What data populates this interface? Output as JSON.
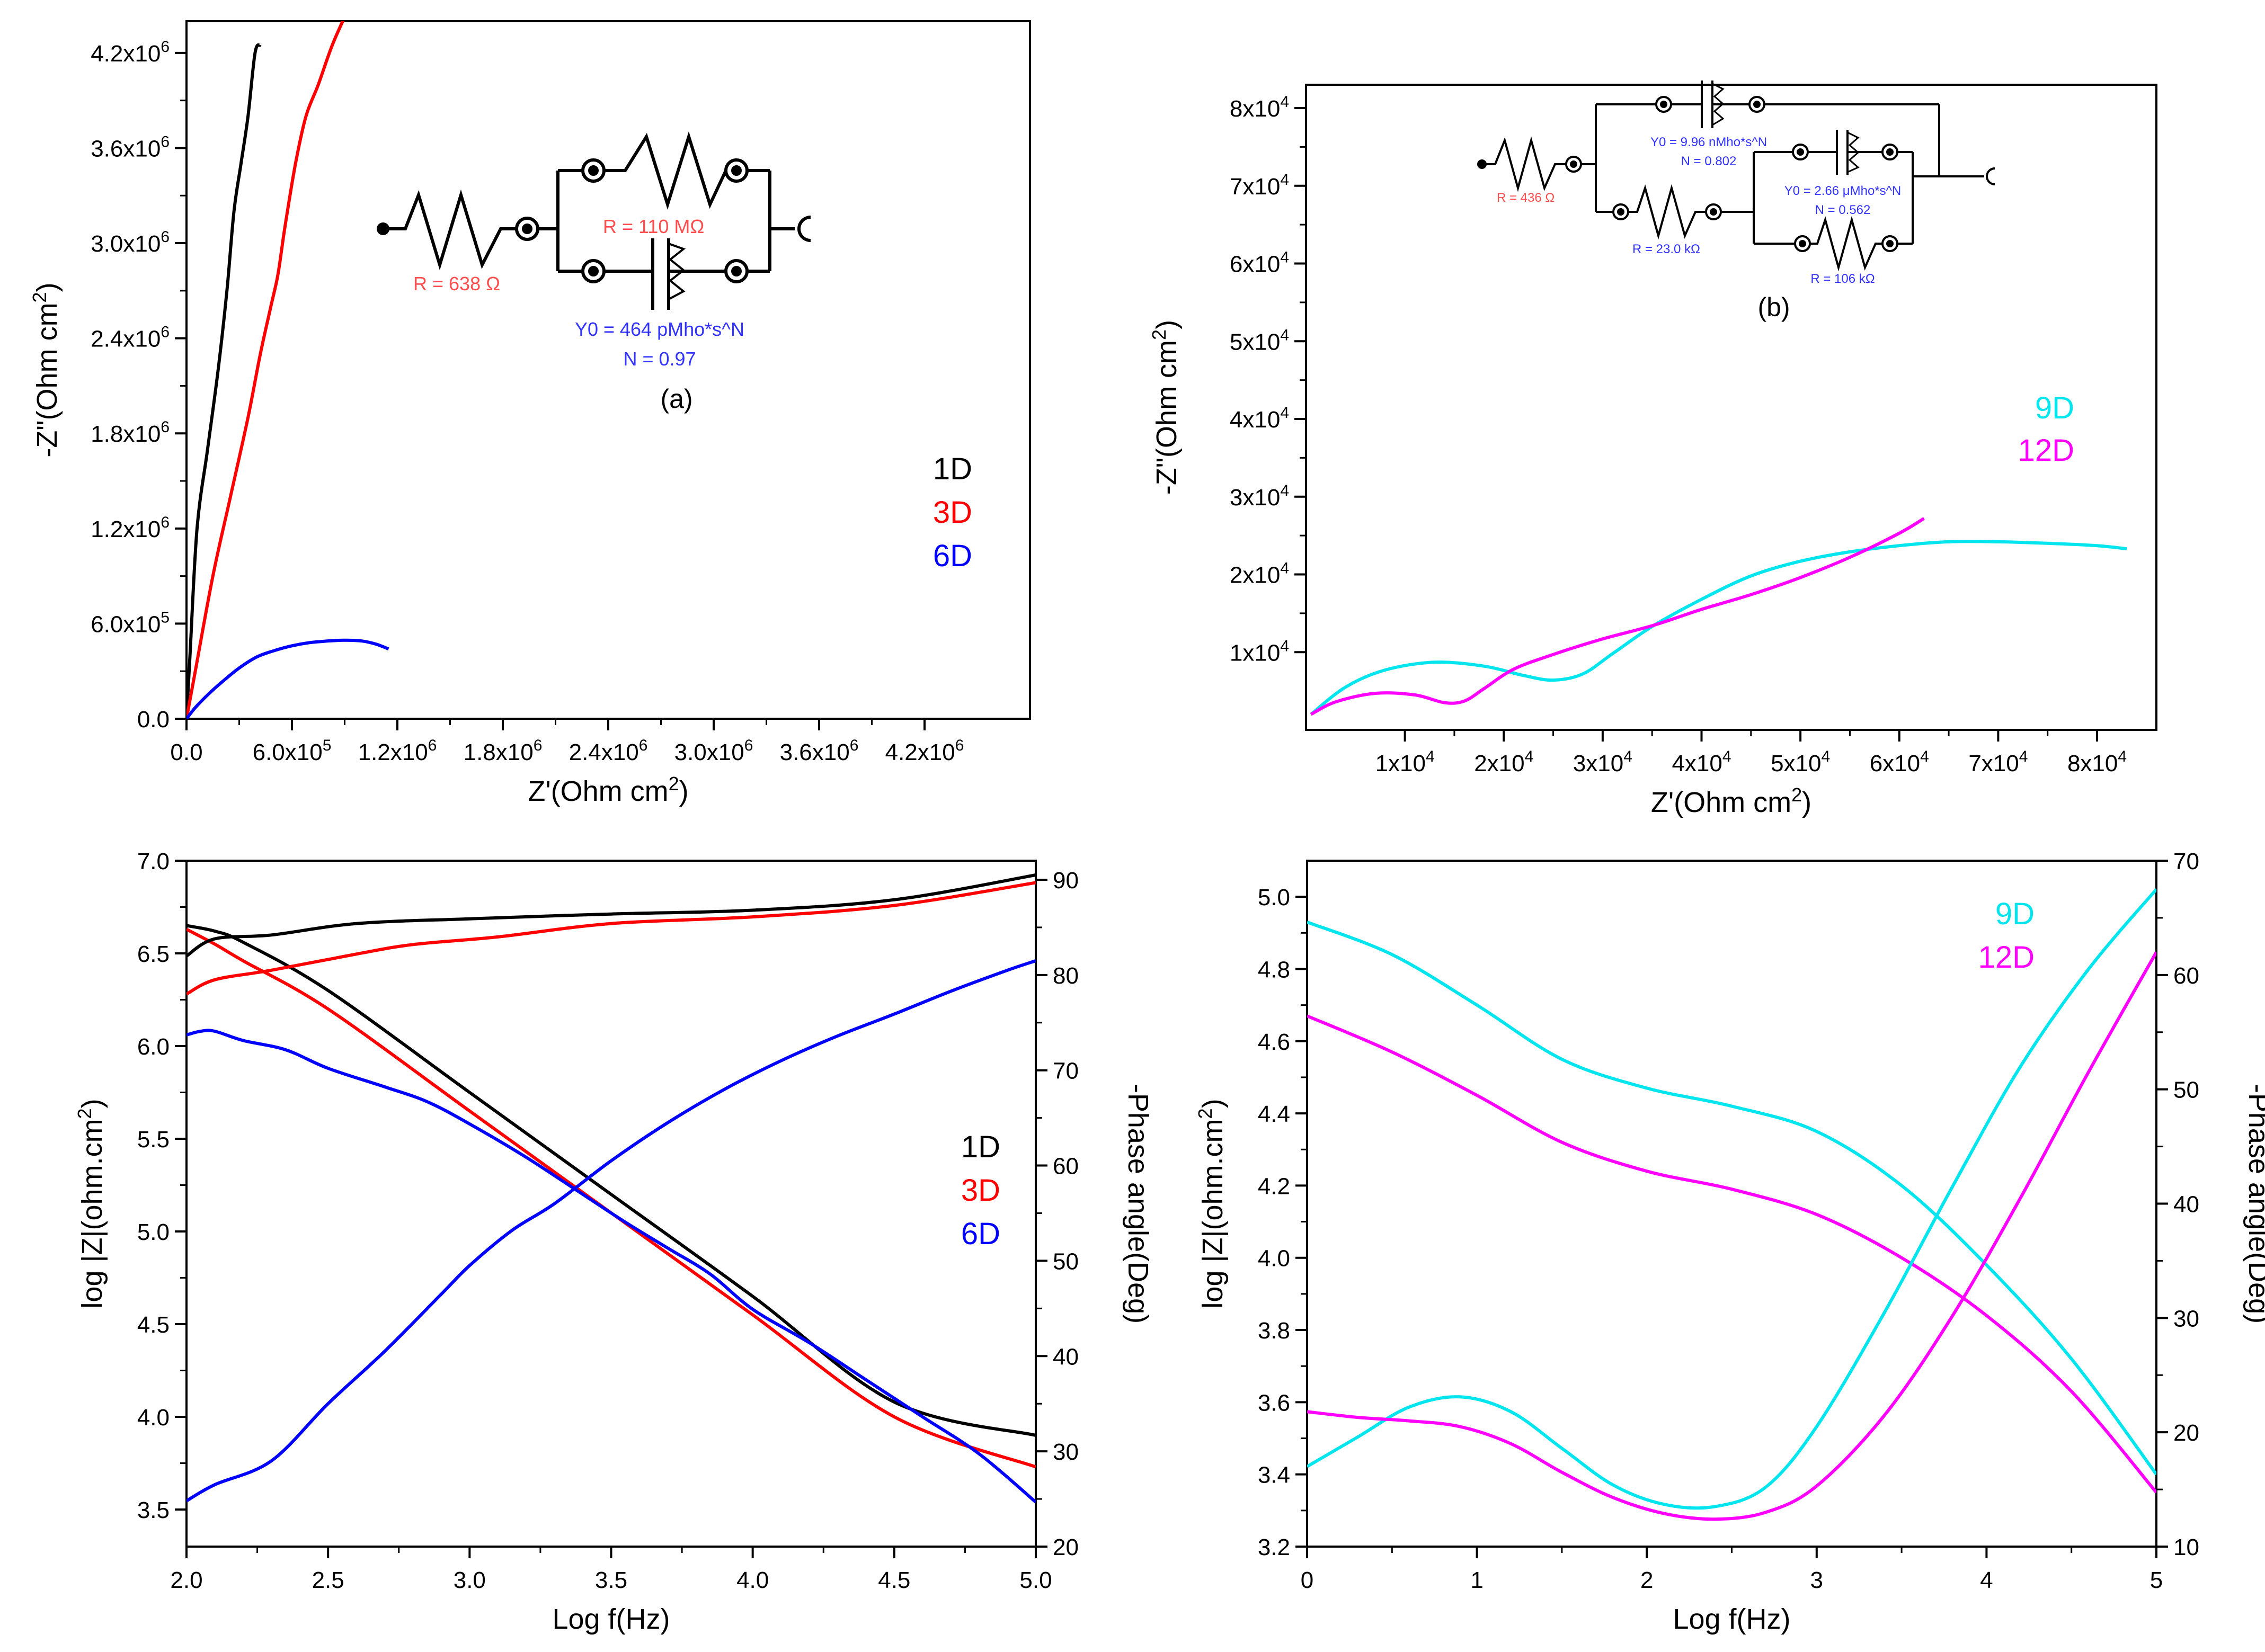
{
  "colors": {
    "black": "#000000",
    "red": "#ff0000",
    "blue": "#0000ff",
    "cyan": "#00e5ee",
    "magenta": "#ff00ff",
    "circuit_red": "#ff4d4d",
    "circuit_blue": "#3333ff"
  },
  "chart_data": [
    {
      "id": "a",
      "type": "line",
      "panel_label": "(a)",
      "xlabel": "Z'(Ohm cm2)",
      "ylabel": "-Z\"(Ohm cm2)",
      "xlim": [
        0,
        4800000
      ],
      "ylim": [
        0,
        4400000
      ],
      "x_ticks": [
        {
          "v": 0,
          "t": "0.0"
        },
        {
          "v": 600000,
          "t": "6.0x10",
          "e": "5"
        },
        {
          "v": 1200000,
          "t": "1.2x10",
          "e": "6"
        },
        {
          "v": 1800000,
          "t": "1.8x10",
          "e": "6"
        },
        {
          "v": 2400000,
          "t": "2.4x10",
          "e": "6"
        },
        {
          "v": 3000000,
          "t": "3.0x10",
          "e": "6"
        },
        {
          "v": 3600000,
          "t": "3.6x10",
          "e": "6"
        },
        {
          "v": 4200000,
          "t": "4.2x10",
          "e": "6"
        }
      ],
      "y_ticks": [
        {
          "v": 0,
          "t": "0.0"
        },
        {
          "v": 600000,
          "t": "6.0x10",
          "e": "5"
        },
        {
          "v": 1200000,
          "t": "1.2x10",
          "e": "6"
        },
        {
          "v": 1800000,
          "t": "1.8x10",
          "e": "6"
        },
        {
          "v": 2400000,
          "t": "2.4x10",
          "e": "6"
        },
        {
          "v": 3000000,
          "t": "3.0x10",
          "e": "6"
        },
        {
          "v": 3600000,
          "t": "3.6x10",
          "e": "6"
        },
        {
          "v": 4200000,
          "t": "4.2x10",
          "e": "6"
        }
      ],
      "series": [
        {
          "name": "1D",
          "color": "#000000",
          "x": [
            0,
            20000,
            60000,
            120000,
            180000,
            230000,
            270000,
            310000,
            350000,
            390000,
            420000
          ],
          "y": [
            0,
            400000,
            1200000,
            1700000,
            2200000,
            2700000,
            3200000,
            3500000,
            3800000,
            4200000,
            4250000
          ]
        },
        {
          "name": "3D",
          "color": "#ff0000",
          "x": [
            0,
            50000,
            150000,
            250000,
            350000,
            420000,
            480000,
            520000,
            560000,
            620000,
            680000,
            750000,
            830000,
            910000
          ],
          "y": [
            0,
            300000,
            900000,
            1400000,
            1900000,
            2300000,
            2600000,
            2800000,
            3100000,
            3500000,
            3800000,
            4000000,
            4250000,
            4450000
          ]
        },
        {
          "name": "6D",
          "color": "#0000ff",
          "x": [
            0,
            50000,
            120000,
            200000,
            300000,
            400000,
            500000,
            600000,
            700000,
            800000,
            900000,
            1000000,
            1080000,
            1150000
          ],
          "y": [
            0,
            70000,
            150000,
            230000,
            320000,
            390000,
            430000,
            460000,
            480000,
            490000,
            495000,
            490000,
            470000,
            440000
          ]
        }
      ],
      "circuit": {
        "r1": "R = 638 Ω",
        "r2": "R = 110 MΩ",
        "cpe_y0": "Y0 = 464 pMho*s^N",
        "cpe_n": "N = 0.97"
      }
    },
    {
      "id": "b",
      "type": "line",
      "panel_label": "(b)",
      "xlabel": "Z'(Ohm cm2)",
      "ylabel": "-Z\"(Ohm cm2)",
      "xlim": [
        0,
        86000
      ],
      "ylim": [
        0,
        83000
      ],
      "x_ticks": [
        {
          "v": 10000,
          "t": "1x10",
          "e": "4"
        },
        {
          "v": 20000,
          "t": "2x10",
          "e": "4"
        },
        {
          "v": 30000,
          "t": "3x10",
          "e": "4"
        },
        {
          "v": 40000,
          "t": "4x10",
          "e": "4"
        },
        {
          "v": 50000,
          "t": "5x10",
          "e": "4"
        },
        {
          "v": 60000,
          "t": "6x10",
          "e": "4"
        },
        {
          "v": 70000,
          "t": "7x10",
          "e": "4"
        },
        {
          "v": 80000,
          "t": "8x10",
          "e": "4"
        }
      ],
      "y_ticks": [
        {
          "v": 10000,
          "t": "1x10",
          "e": "4"
        },
        {
          "v": 20000,
          "t": "2x10",
          "e": "4"
        },
        {
          "v": 30000,
          "t": "3x10",
          "e": "4"
        },
        {
          "v": 40000,
          "t": "4x10",
          "e": "4"
        },
        {
          "v": 50000,
          "t": "5x10",
          "e": "4"
        },
        {
          "v": 60000,
          "t": "6x10",
          "e": "4"
        },
        {
          "v": 70000,
          "t": "7x10",
          "e": "4"
        },
        {
          "v": 80000,
          "t": "8x10",
          "e": "4"
        }
      ],
      "series": [
        {
          "name": "9D",
          "color": "#00e5ee",
          "x": [
            500,
            4000,
            8000,
            13000,
            18000,
            22000,
            25000,
            28000,
            31000,
            35000,
            40000,
            45000,
            50000,
            55000,
            60000,
            65000,
            70000,
            75000,
            80000,
            83000
          ],
          "y": [
            2000,
            5500,
            7700,
            8700,
            8200,
            7000,
            6400,
            7200,
            9800,
            13300,
            16800,
            19800,
            21700,
            22900,
            23700,
            24200,
            24200,
            24000,
            23700,
            23300
          ]
        },
        {
          "name": "12D",
          "color": "#ff00ff",
          "x": [
            500,
            3000,
            7000,
            11000,
            14000,
            16000,
            18000,
            21000,
            25000,
            30000,
            35000,
            40000,
            45000,
            50000,
            55000,
            60000,
            62500
          ],
          "y": [
            2000,
            3600,
            4700,
            4500,
            3500,
            3700,
            5300,
            7800,
            9700,
            11700,
            13400,
            15500,
            17400,
            19600,
            22200,
            25300,
            27200
          ]
        }
      ],
      "circuit": {
        "r1": "R = 436 Ω",
        "y0_1": "Y0 = 9.96 nMho*s^N",
        "n_1": "N = 0.802",
        "r2": "R = 23.0 kΩ",
        "y0_2": "Y0 = 2.66 μMho*s^N",
        "n_2": "N = 0.562",
        "r3": "R = 106 kΩ"
      }
    },
    {
      "id": "c",
      "type": "line",
      "xlabel": "Log f(Hz)",
      "ylabel": "log |Z|(ohm.cm2)",
      "ylabel_right": "-Phase angle(Deg)",
      "xlim": [
        2.0,
        5.0
      ],
      "ylim": [
        3.3,
        7.0
      ],
      "ylim_right": [
        20,
        92
      ],
      "x_ticks": [
        {
          "v": 2.0,
          "t": "2.0"
        },
        {
          "v": 2.5,
          "t": "2.5"
        },
        {
          "v": 3.0,
          "t": "3.0"
        },
        {
          "v": 3.5,
          "t": "3.5"
        },
        {
          "v": 4.0,
          "t": "4.0"
        },
        {
          "v": 4.5,
          "t": "4.5"
        },
        {
          "v": 5.0,
          "t": "5.0"
        }
      ],
      "y_ticks": [
        {
          "v": 3.5,
          "t": "3.5"
        },
        {
          "v": 4.0,
          "t": "4.0"
        },
        {
          "v": 4.5,
          "t": "4.5"
        },
        {
          "v": 5.0,
          "t": "5.0"
        },
        {
          "v": 5.5,
          "t": "5.5"
        },
        {
          "v": 6.0,
          "t": "6.0"
        },
        {
          "v": 6.5,
          "t": "6.5"
        },
        {
          "v": 7.0,
          "t": "7.0"
        }
      ],
      "y2_ticks": [
        {
          "v": 20,
          "t": "20"
        },
        {
          "v": 30,
          "t": "30"
        },
        {
          "v": 40,
          "t": "40"
        },
        {
          "v": 50,
          "t": "50"
        },
        {
          "v": 60,
          "t": "60"
        },
        {
          "v": 70,
          "t": "70"
        },
        {
          "v": 80,
          "t": "80"
        },
        {
          "v": 90,
          "t": "90"
        }
      ],
      "series": [
        {
          "name": "1D",
          "color": "#000000",
          "axis": "left",
          "x": [
            2.0,
            2.1,
            2.2,
            2.5,
            3.0,
            3.5,
            4.0,
            4.5,
            5.0
          ],
          "y": [
            6.65,
            6.62,
            6.56,
            6.3,
            5.75,
            5.2,
            4.65,
            4.08,
            3.9
          ]
        },
        {
          "name": "3D",
          "color": "#ff0000",
          "axis": "left",
          "x": [
            2.0,
            2.1,
            2.2,
            2.5,
            3.0,
            3.5,
            4.0,
            4.5,
            5.0
          ],
          "y": [
            6.63,
            6.55,
            6.46,
            6.2,
            5.65,
            5.1,
            4.55,
            4.0,
            3.73
          ]
        },
        {
          "name": "6D",
          "color": "#0000ff",
          "axis": "left",
          "x": [
            2.0,
            2.05,
            2.1,
            2.2,
            2.35,
            2.5,
            2.7,
            2.85,
            3.0,
            3.2,
            3.4,
            3.55,
            3.7,
            3.85,
            4.0,
            4.2,
            4.4,
            4.6,
            4.8,
            5.0
          ],
          "y": [
            6.06,
            6.08,
            6.08,
            6.03,
            5.98,
            5.88,
            5.78,
            5.7,
            5.58,
            5.4,
            5.2,
            5.05,
            4.91,
            4.77,
            4.58,
            4.4,
            4.2,
            4.0,
            3.8,
            3.54
          ]
        },
        {
          "name": "1D",
          "color": "#000000",
          "axis": "right",
          "x": [
            2.0,
            2.1,
            2.3,
            2.6,
            3.0,
            3.5,
            4.0,
            4.5,
            5.0
          ],
          "y": [
            82,
            83.8,
            84.2,
            85.4,
            85.9,
            86.4,
            86.8,
            87.9,
            90.5
          ]
        },
        {
          "name": "3D",
          "color": "#ff0000",
          "axis": "right",
          "x": [
            2.0,
            2.1,
            2.3,
            2.6,
            2.8,
            3.1,
            3.5,
            4.0,
            4.5,
            5.0
          ],
          "y": [
            78,
            79.5,
            80.5,
            82.2,
            83.2,
            84,
            85.4,
            86.1,
            87.3,
            89.7
          ]
        },
        {
          "name": "6D",
          "color": "#0000ff",
          "axis": "right",
          "x": [
            2.0,
            2.1,
            2.3,
            2.5,
            2.7,
            2.9,
            3.0,
            3.15,
            3.3,
            3.5,
            3.7,
            3.9,
            4.1,
            4.3,
            4.5,
            4.7,
            4.9,
            5.0
          ],
          "y": [
            24.8,
            26.5,
            29,
            35,
            40.5,
            46.5,
            49.5,
            53.2,
            56,
            60.5,
            64.5,
            68,
            71,
            73.6,
            75.9,
            78.3,
            80.5,
            81.5
          ]
        }
      ]
    },
    {
      "id": "d",
      "type": "line",
      "xlabel": "Log f(Hz)",
      "ylabel": "log |Z|(ohm.cm2)",
      "ylabel_right": "-Phase angle(Deg)",
      "xlim": [
        0,
        5
      ],
      "ylim": [
        3.2,
        5.1
      ],
      "ylim_right": [
        10,
        70
      ],
      "x_ticks": [
        {
          "v": 0,
          "t": "0"
        },
        {
          "v": 1,
          "t": "1"
        },
        {
          "v": 2,
          "t": "2"
        },
        {
          "v": 3,
          "t": "3"
        },
        {
          "v": 4,
          "t": "4"
        },
        {
          "v": 5,
          "t": "5"
        }
      ],
      "y_ticks": [
        {
          "v": 3.2,
          "t": "3.2"
        },
        {
          "v": 3.4,
          "t": "3.4"
        },
        {
          "v": 3.6,
          "t": "3.6"
        },
        {
          "v": 3.8,
          "t": "3.8"
        },
        {
          "v": 4.0,
          "t": "4.0"
        },
        {
          "v": 4.2,
          "t": "4.2"
        },
        {
          "v": 4.4,
          "t": "4.4"
        },
        {
          "v": 4.6,
          "t": "4.6"
        },
        {
          "v": 4.8,
          "t": "4.8"
        },
        {
          "v": 5.0,
          "t": "5.0"
        }
      ],
      "y2_ticks": [
        {
          "v": 10,
          "t": "10"
        },
        {
          "v": 20,
          "t": "20"
        },
        {
          "v": 30,
          "t": "30"
        },
        {
          "v": 40,
          "t": "40"
        },
        {
          "v": 50,
          "t": "50"
        },
        {
          "v": 60,
          "t": "60"
        },
        {
          "v": 70,
          "t": "70"
        }
      ],
      "series": [
        {
          "name": "9D",
          "color": "#00e5ee",
          "axis": "left",
          "x": [
            0,
            0.5,
            1,
            1.5,
            2,
            2.5,
            3,
            3.5,
            4,
            4.5,
            5
          ],
          "y": [
            4.93,
            4.84,
            4.7,
            4.55,
            4.47,
            4.42,
            4.35,
            4.2,
            3.98,
            3.72,
            3.4
          ]
        },
        {
          "name": "12D",
          "color": "#ff00ff",
          "axis": "left",
          "x": [
            0,
            0.5,
            1,
            1.5,
            2,
            2.5,
            3,
            3.5,
            4,
            4.5,
            5
          ],
          "y": [
            4.67,
            4.57,
            4.45,
            4.32,
            4.24,
            4.19,
            4.12,
            4.0,
            3.84,
            3.63,
            3.35
          ]
        },
        {
          "name": "9D",
          "color": "#00e5ee",
          "axis": "right",
          "x": [
            0,
            0.3,
            0.6,
            0.9,
            1.2,
            1.5,
            1.8,
            2.1,
            2.4,
            2.7,
            3.0,
            3.4,
            3.8,
            4.2,
            4.6,
            5.0
          ],
          "y": [
            17,
            19.6,
            22.2,
            23.1,
            21.8,
            18.6,
            15.4,
            13.7,
            13.5,
            15.2,
            20.5,
            30.5,
            41.5,
            52,
            60.5,
            67.5
          ]
        },
        {
          "name": "12D",
          "color": "#ff00ff",
          "axis": "right",
          "x": [
            0,
            0.3,
            0.6,
            0.9,
            1.2,
            1.5,
            1.8,
            2.1,
            2.4,
            2.7,
            3.0,
            3.4,
            3.8,
            4.2,
            4.6,
            5.0
          ],
          "y": [
            21.8,
            21.3,
            21,
            20.5,
            19,
            16.5,
            14.3,
            12.9,
            12.4,
            13,
            15.3,
            21.5,
            30.2,
            40.5,
            51.5,
            62
          ]
        }
      ]
    }
  ]
}
